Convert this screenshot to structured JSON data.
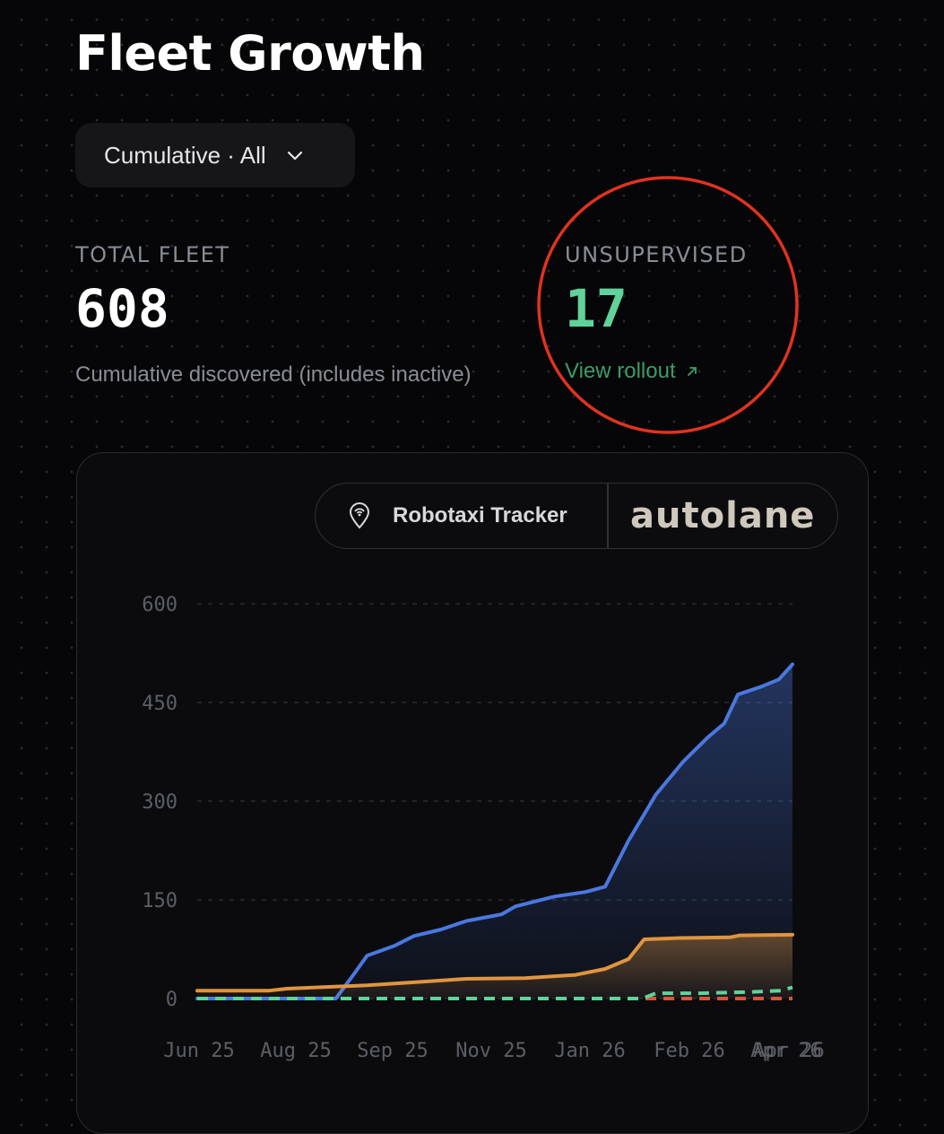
{
  "header": {
    "title": "Fleet Growth"
  },
  "view_selector": {
    "label": "Cumulative · All"
  },
  "stats": {
    "total": {
      "label": "TOTAL FLEET",
      "value": "608",
      "subtitle": "Cumulative discovered (includes inactive)"
    },
    "unsupervised": {
      "label": "UNSUPERVISED",
      "value": "17",
      "link": "View rollout"
    }
  },
  "branding": {
    "tracker": "Robotaxi Tracker",
    "logo": "autolane"
  },
  "colors": {
    "accent_green": "#5fd39a",
    "link_green": "#3f9b6a",
    "series_blue": "#4a78e0",
    "series_orange": "#e0953e",
    "series_red": "#d2573f",
    "highlight_red": "#e0331f"
  },
  "chart_data": {
    "type": "area",
    "ylim": [
      0,
      600
    ],
    "y_ticks": [
      "0",
      "150",
      "300",
      "450",
      "600"
    ],
    "x_ticks": [
      "Jun 25",
      "Aug 25",
      "Sep 25",
      "Nov 25",
      "Jan 26",
      "Feb 26",
      "Apr 26",
      "Apr 26"
    ],
    "x_range": [
      "2025-06-25",
      "2026-04-26"
    ],
    "grid": true,
    "series": [
      {
        "style": "area",
        "color": "#4a78e0",
        "points": [
          [
            "2025-06-25",
            0
          ],
          [
            "2025-08-25",
            0
          ],
          [
            "2025-09-04",
            0
          ],
          [
            "2025-09-14",
            40
          ],
          [
            "2025-09-20",
            65
          ],
          [
            "2025-10-04",
            80
          ],
          [
            "2025-10-14",
            95
          ],
          [
            "2025-10-28",
            105
          ],
          [
            "2025-11-10",
            118
          ],
          [
            "2025-11-28",
            128
          ],
          [
            "2025-12-05",
            140
          ],
          [
            "2025-12-25",
            155
          ],
          [
            "2026-01-10",
            162
          ],
          [
            "2026-01-20",
            170
          ],
          [
            "2026-02-01",
            240
          ],
          [
            "2026-02-15",
            310
          ],
          [
            "2026-03-01",
            360
          ],
          [
            "2026-03-14",
            398
          ],
          [
            "2026-03-22",
            418
          ],
          [
            "2026-03-29",
            462
          ],
          [
            "2026-04-10",
            474
          ],
          [
            "2026-04-19",
            485
          ],
          [
            "2026-04-26",
            508
          ]
        ]
      },
      {
        "style": "area",
        "color": "#e0953e",
        "points": [
          [
            "2025-06-25",
            12
          ],
          [
            "2025-08-01",
            12
          ],
          [
            "2025-08-10",
            15
          ],
          [
            "2025-09-20",
            20
          ],
          [
            "2025-10-15",
            25
          ],
          [
            "2025-11-10",
            30
          ],
          [
            "2025-12-10",
            31
          ],
          [
            "2026-01-05",
            36
          ],
          [
            "2026-01-20",
            45
          ],
          [
            "2026-02-01",
            60
          ],
          [
            "2026-02-09",
            90
          ],
          [
            "2026-02-28",
            92
          ],
          [
            "2026-03-25",
            93
          ],
          [
            "2026-03-30",
            96
          ],
          [
            "2026-04-26",
            97
          ]
        ]
      },
      {
        "style": "dashed",
        "color": "#5fd39a",
        "points": [
          [
            "2025-06-25",
            0
          ],
          [
            "2026-02-08",
            0
          ],
          [
            "2026-02-15",
            8
          ],
          [
            "2026-03-10",
            8
          ],
          [
            "2026-04-05",
            10
          ],
          [
            "2026-04-20",
            12
          ],
          [
            "2026-04-26",
            17
          ]
        ]
      },
      {
        "style": "dashed",
        "color": "#d2573f",
        "points": [
          [
            "2025-06-25",
            0
          ],
          [
            "2026-04-26",
            0
          ]
        ]
      }
    ]
  }
}
